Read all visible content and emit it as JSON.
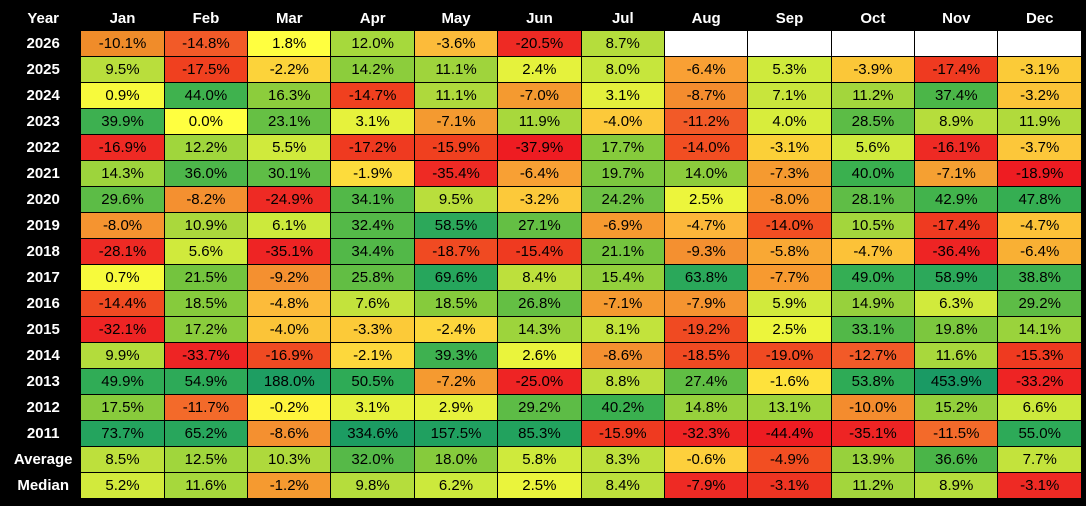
{
  "chart_data": {
    "type": "heatmap",
    "title": "",
    "corner_label": "Year",
    "columns": [
      "Jan",
      "Feb",
      "Mar",
      "Apr",
      "May",
      "Jun",
      "Jul",
      "Aug",
      "Sep",
      "Oct",
      "Nov",
      "Dec"
    ],
    "rows": [
      {
        "label": "2026",
        "values": [
          "-10.1%",
          "-14.8%",
          "1.8%",
          "12.0%",
          "-3.6%",
          "-20.5%",
          "8.7%",
          "",
          "",
          "",
          "",
          ""
        ],
        "colors": [
          "#f08c2a",
          "#f25a28",
          "#ffff40",
          "#a6d93c",
          "#fcbb3a",
          "#ee2a24",
          "#b5dd3c",
          "#ffffff",
          "#ffffff",
          "#ffffff",
          "#ffffff",
          "#ffffff"
        ]
      },
      {
        "label": "2025",
        "values": [
          "9.5%",
          "-17.5%",
          "-2.2%",
          "14.2%",
          "11.1%",
          "2.4%",
          "8.0%",
          "-6.4%",
          "5.3%",
          "-3.9%",
          "-17.4%",
          "-3.1%"
        ],
        "colors": [
          "#b9de3c",
          "#f0401f",
          "#fcd33a",
          "#8ccd3c",
          "#9fd43c",
          "#e5f23c",
          "#c6e63c",
          "#f9a034",
          "#cfea3c",
          "#fbc738",
          "#ef3a20",
          "#fbcb38"
        ]
      },
      {
        "label": "2024",
        "values": [
          "0.9%",
          "44.0%",
          "16.3%",
          "-14.7%",
          "11.1%",
          "-7.0%",
          "3.1%",
          "-8.7%",
          "7.1%",
          "11.2%",
          "37.4%",
          "-3.2%"
        ],
        "colors": [
          "#f7fa3c",
          "#3fb24e",
          "#8ccd3c",
          "#f0401f",
          "#aed93c",
          "#f49a30",
          "#e3f03c",
          "#f48c2e",
          "#c8e53c",
          "#a3d63c",
          "#4bb648",
          "#fbc438"
        ]
      },
      {
        "label": "2023",
        "values": [
          "39.9%",
          "0.0%",
          "23.1%",
          "3.1%",
          "-7.1%",
          "11.9%",
          "-4.0%",
          "-11.2%",
          "4.0%",
          "28.5%",
          "8.9%",
          "11.9%"
        ],
        "colors": [
          "#3db050",
          "#ffff40",
          "#66c044",
          "#e6f23c",
          "#f49a30",
          "#a8d83c",
          "#fcc93a",
          "#f25a28",
          "#d8ed3c",
          "#5cbc46",
          "#b6dd3c",
          "#b1da3c"
        ]
      },
      {
        "label": "2022",
        "values": [
          "-16.9%",
          "12.2%",
          "5.5%",
          "-17.2%",
          "-15.9%",
          "-37.9%",
          "17.7%",
          "-14.0%",
          "-3.1%",
          "5.6%",
          "-16.1%",
          "-3.7%"
        ],
        "colors": [
          "#ee2a24",
          "#a0d63c",
          "#d0ea3c",
          "#ef3a20",
          "#f0401f",
          "#ee1c22",
          "#86cb3c",
          "#f24e22",
          "#fbd038",
          "#cfea3c",
          "#ee2a24",
          "#fcc73a"
        ]
      },
      {
        "label": "2021",
        "values": [
          "14.3%",
          "36.0%",
          "30.1%",
          "-1.9%",
          "-35.4%",
          "-6.4%",
          "19.7%",
          "14.0%",
          "-7.3%",
          "40.0%",
          "-7.1%",
          "-18.9%"
        ],
        "colors": [
          "#9dd43c",
          "#4db64a",
          "#5fbd46",
          "#fddc3c",
          "#ee2a24",
          "#f8a034",
          "#7cc73e",
          "#8ccc3c",
          "#f59a30",
          "#3ab04f",
          "#f5a032",
          "#ee1c22"
        ]
      },
      {
        "label": "2020",
        "values": [
          "29.6%",
          "-8.2%",
          "-24.9%",
          "34.1%",
          "9.5%",
          "-3.2%",
          "24.2%",
          "2.5%",
          "-8.0%",
          "28.1%",
          "42.9%",
          "47.8%"
        ],
        "colors": [
          "#5cbc46",
          "#f49030",
          "#ee2a24",
          "#52b848",
          "#b9de3c",
          "#fcc93a",
          "#6ec244",
          "#ecf53c",
          "#f79a30",
          "#5fbd46",
          "#42b34c",
          "#35ae52"
        ]
      },
      {
        "label": "2019",
        "values": [
          "-8.0%",
          "10.9%",
          "6.1%",
          "32.4%",
          "58.5%",
          "27.1%",
          "-6.9%",
          "-4.7%",
          "-14.0%",
          "10.5%",
          "-17.4%",
          "-4.7%"
        ],
        "colors": [
          "#f59430",
          "#aad83c",
          "#cce93c",
          "#54b948",
          "#2ca85a",
          "#64bf44",
          "#f69a30",
          "#fcb63a",
          "#f24e22",
          "#a3d63c",
          "#ef3a20",
          "#fcc238"
        ]
      },
      {
        "label": "2018",
        "values": [
          "-28.1%",
          "5.6%",
          "-35.1%",
          "34.4%",
          "-18.7%",
          "-15.4%",
          "21.1%",
          "-9.3%",
          "-5.8%",
          "-4.7%",
          "-36.4%",
          "-6.4%"
        ],
        "colors": [
          "#ee2a24",
          "#d0ea3c",
          "#ee2424",
          "#52b848",
          "#f04a22",
          "#ef3a20",
          "#74c43e",
          "#f49030",
          "#f9a834",
          "#fcc238",
          "#ee2424",
          "#f9b034"
        ]
      },
      {
        "label": "2017",
        "values": [
          "0.7%",
          "21.5%",
          "-9.2%",
          "25.8%",
          "69.6%",
          "8.4%",
          "15.4%",
          "63.8%",
          "-7.7%",
          "49.0%",
          "58.9%",
          "38.8%"
        ],
        "colors": [
          "#f7fa3c",
          "#74c43e",
          "#f49030",
          "#62be44",
          "#26a65c",
          "#bde03c",
          "#93d03c",
          "#2aa85a",
          "#f79a30",
          "#34ae54",
          "#2ca85a",
          "#3eb150"
        ]
      },
      {
        "label": "2016",
        "values": [
          "-14.4%",
          "18.5%",
          "-4.8%",
          "7.6%",
          "18.5%",
          "26.8%",
          "-7.1%",
          "-7.9%",
          "5.9%",
          "14.9%",
          "6.3%",
          "29.2%"
        ],
        "colors": [
          "#f04a22",
          "#86cb3c",
          "#fcbb3a",
          "#c3e33c",
          "#86cb3c",
          "#64bf44",
          "#f59a30",
          "#f59430",
          "#d1ea3c",
          "#97d13c",
          "#d1ea3c",
          "#5dbc46"
        ]
      },
      {
        "label": "2015",
        "values": [
          "-32.1%",
          "17.2%",
          "-4.0%",
          "-3.3%",
          "-2.4%",
          "14.3%",
          "8.1%",
          "-19.2%",
          "2.5%",
          "33.1%",
          "19.8%",
          "14.1%"
        ],
        "colors": [
          "#ee2424",
          "#8acc3c",
          "#fbc438",
          "#fcca38",
          "#fdd63c",
          "#9dd43c",
          "#c2e33c",
          "#f04a22",
          "#ecf53c",
          "#52b848",
          "#7cc73e",
          "#9ad33c"
        ]
      },
      {
        "label": "2014",
        "values": [
          "9.9%",
          "-33.7%",
          "-16.9%",
          "-2.1%",
          "39.3%",
          "2.6%",
          "-8.6%",
          "-18.5%",
          "-19.0%",
          "-12.7%",
          "11.6%",
          "-15.3%"
        ],
        "colors": [
          "#b3dc3c",
          "#ee2424",
          "#f04a22",
          "#fdd83c",
          "#3eb150",
          "#eaf43c",
          "#f49030",
          "#f04a22",
          "#f04a22",
          "#f25a28",
          "#a8d83c",
          "#ef3a20"
        ]
      },
      {
        "label": "2013",
        "values": [
          "49.9%",
          "54.9%",
          "188.0%",
          "50.5%",
          "-7.2%",
          "-25.0%",
          "8.8%",
          "27.4%",
          "-1.6%",
          "53.8%",
          "453.9%",
          "-33.2%"
        ],
        "colors": [
          "#30ac56",
          "#2daa58",
          "#1e9e62",
          "#2eab56",
          "#f59a30",
          "#ee2424",
          "#bcdf3c",
          "#60be44",
          "#fee23c",
          "#2eab56",
          "#1a9a64",
          "#ee2424"
        ]
      },
      {
        "label": "2012",
        "values": [
          "17.5%",
          "-11.7%",
          "-0.2%",
          "3.1%",
          "2.9%",
          "29.2%",
          "40.2%",
          "14.8%",
          "13.1%",
          "-10.0%",
          "15.2%",
          "6.6%"
        ],
        "colors": [
          "#88cb3c",
          "#f36a2a",
          "#fef43c",
          "#e6f23c",
          "#e6f23c",
          "#5dbc46",
          "#3ab04f",
          "#97d13c",
          "#9ed43c",
          "#f48c2e",
          "#93d03c",
          "#cce93c"
        ]
      },
      {
        "label": "2011",
        "values": [
          "73.7%",
          "65.2%",
          "-8.6%",
          "334.6%",
          "157.5%",
          "85.3%",
          "-15.9%",
          "-32.3%",
          "-44.4%",
          "-35.1%",
          "-11.5%",
          "55.0%"
        ],
        "colors": [
          "#24a45e",
          "#28a65c",
          "#f49030",
          "#1c9c62",
          "#20a060",
          "#22a25e",
          "#ef3a20",
          "#ee2424",
          "#ee1c22",
          "#ee2424",
          "#f36a2a",
          "#2daa58"
        ]
      }
    ],
    "summary_rows": [
      {
        "label": "Average",
        "values": [
          "8.5%",
          "12.5%",
          "10.3%",
          "32.0%",
          "18.0%",
          "5.8%",
          "8.3%",
          "-0.6%",
          "-4.9%",
          "13.9%",
          "36.6%",
          "7.7%"
        ],
        "colors": [
          "#bde03c",
          "#a0d63c",
          "#aed93c",
          "#56b948",
          "#86cb3c",
          "#cfea3c",
          "#bde03c",
          "#fdd03c",
          "#f24e22",
          "#97d13c",
          "#4ab548",
          "#c3e33c"
        ]
      },
      {
        "label": "Median",
        "values": [
          "5.2%",
          "11.6%",
          "-1.2%",
          "9.8%",
          "6.2%",
          "2.5%",
          "8.4%",
          "-7.9%",
          "-3.1%",
          "11.2%",
          "8.9%",
          "-3.1%"
        ],
        "colors": [
          "#d2ea3c",
          "#a6d83c",
          "#f59a30",
          "#b5dd3c",
          "#cce93c",
          "#eaf43c",
          "#bcdf3c",
          "#ee2a24",
          "#ee3422",
          "#a3d63c",
          "#b6dd3c",
          "#ee2a24"
        ]
      }
    ]
  }
}
